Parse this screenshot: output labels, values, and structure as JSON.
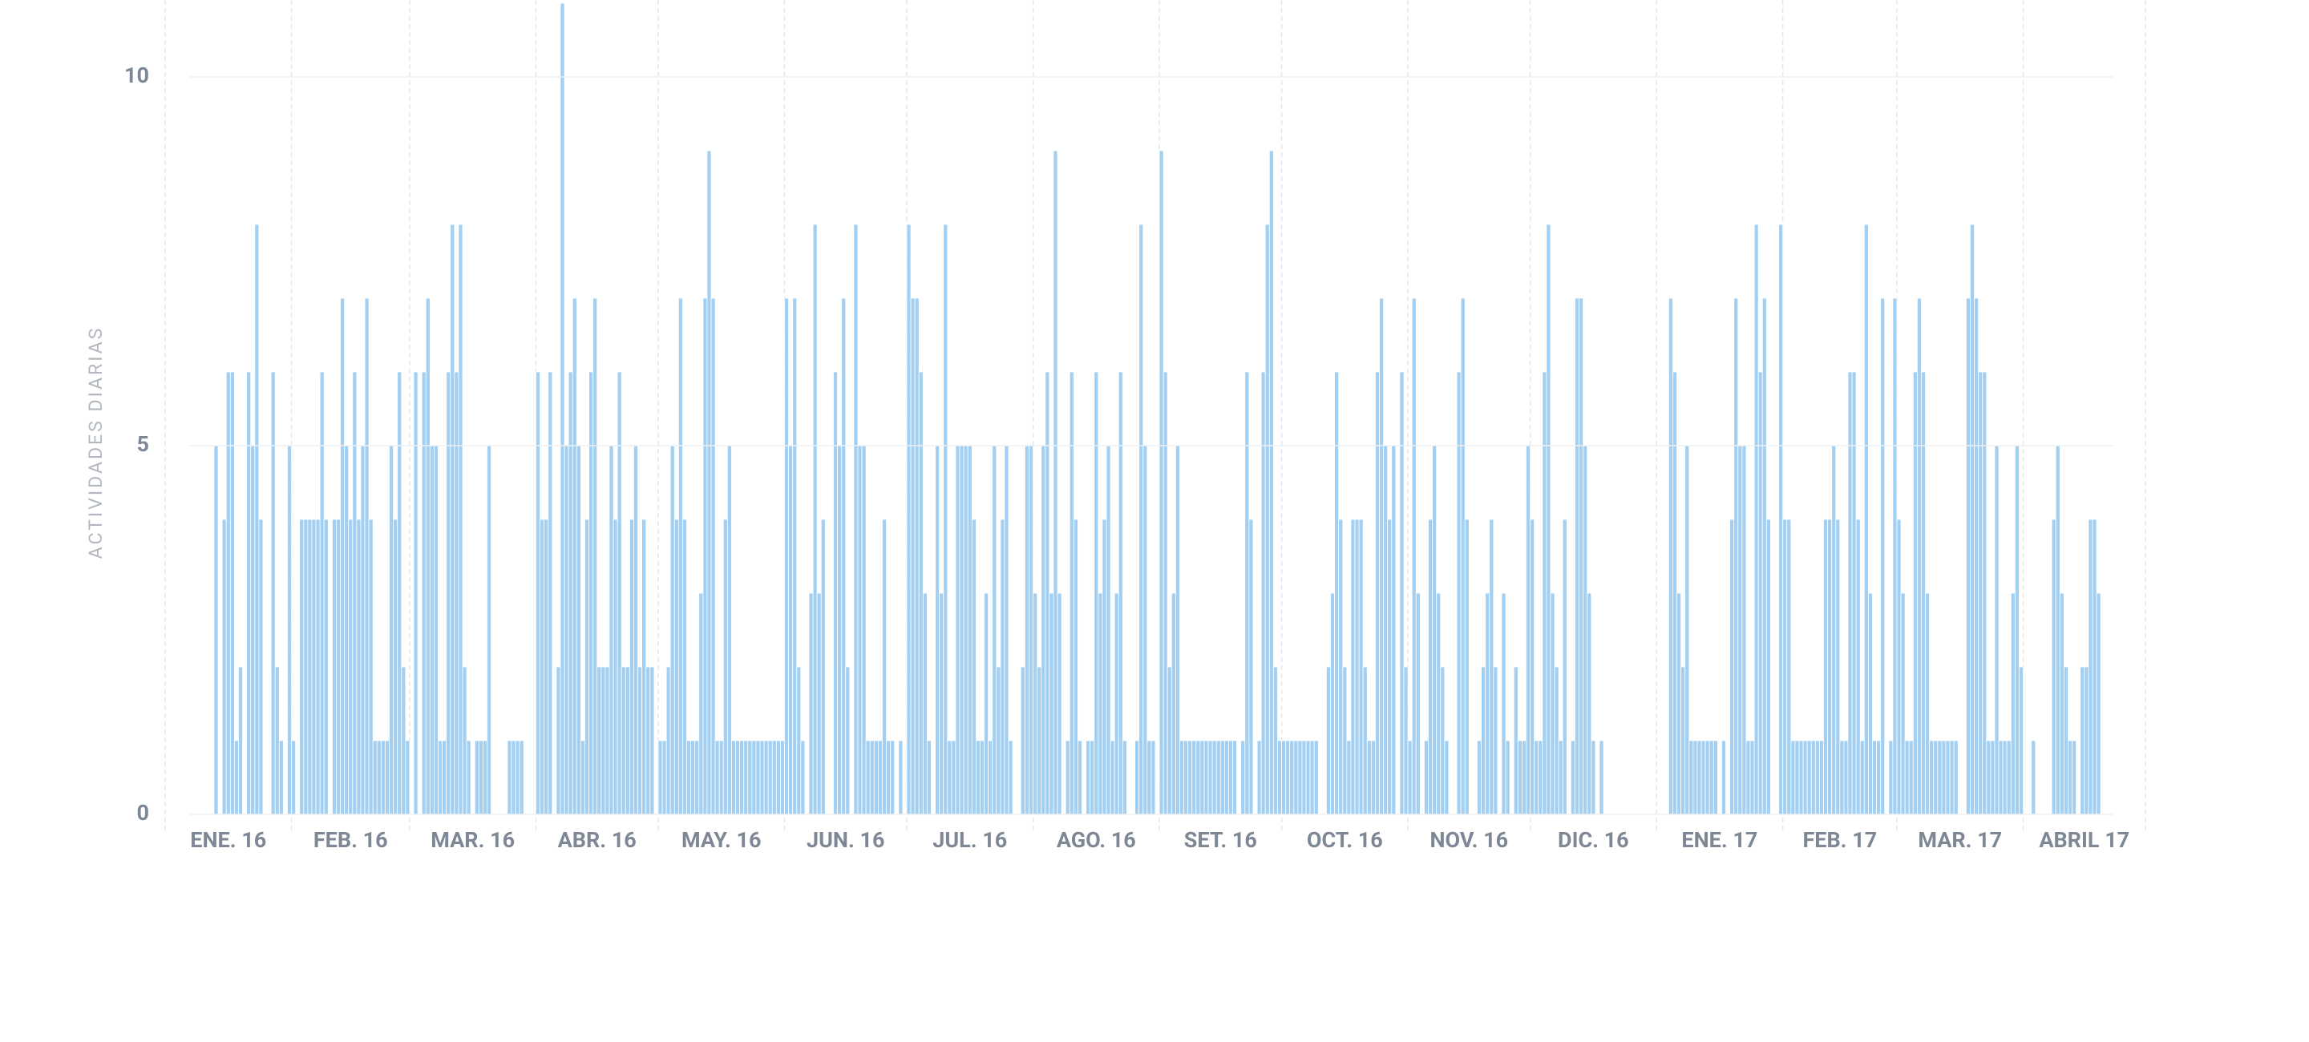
{
  "chart_data": {
    "type": "bar",
    "y_axis_label": "ACTIVIDADES DIARIAS",
    "categories": [
      "ENE. 16",
      "FEB. 16",
      "MAR. 16",
      "ABR. 16",
      "MAY. 16",
      "JUN. 16",
      "JUL. 16",
      "AGO. 16",
      "SET. 16",
      "OCT. 16",
      "NOV. 16",
      "DIC. 16",
      "ENE. 17",
      "FEB. 17",
      "MAR. 17",
      "ABRIL 17"
    ],
    "values": [
      [
        0,
        0,
        0,
        0,
        0,
        0,
        0,
        0,
        0,
        0,
        0,
        0,
        5,
        0,
        4,
        6,
        6,
        1,
        2,
        0,
        6,
        5,
        8,
        4,
        0,
        0,
        6,
        2,
        1,
        0,
        5
      ],
      [
        1,
        0,
        4,
        4,
        4,
        4,
        4,
        6,
        4,
        0,
        4,
        4,
        7,
        5,
        4,
        6,
        4,
        5,
        7,
        4,
        1,
        1,
        1,
        1,
        5,
        4,
        6,
        2,
        1
      ],
      [
        0,
        6,
        0,
        6,
        7,
        5,
        5,
        1,
        1,
        6,
        8,
        6,
        8,
        2,
        1,
        0,
        1,
        1,
        1,
        5,
        0,
        0,
        0,
        0,
        1,
        1,
        1,
        1,
        0,
        0,
        0
      ],
      [
        6,
        4,
        4,
        6,
        0,
        2,
        11,
        5,
        6,
        7,
        5,
        1,
        4,
        6,
        7,
        2,
        2,
        2,
        5,
        4,
        6,
        2,
        2,
        4,
        5,
        2,
        4,
        2,
        2,
        0
      ],
      [
        1,
        1,
        2,
        5,
        4,
        7,
        4,
        1,
        1,
        1,
        3,
        7,
        9,
        7,
        1,
        1,
        4,
        5,
        1,
        1,
        1,
        1,
        1,
        1,
        1,
        1,
        1,
        1,
        1,
        1,
        1
      ],
      [
        7,
        5,
        7,
        2,
        1,
        0,
        3,
        8,
        3,
        4,
        0,
        0,
        6,
        5,
        7,
        2,
        0,
        8,
        5,
        5,
        1,
        1,
        1,
        1,
        4,
        1,
        1,
        0,
        1,
        0
      ],
      [
        8,
        7,
        7,
        6,
        3,
        1,
        0,
        5,
        3,
        8,
        1,
        1,
        5,
        5,
        5,
        5,
        4,
        1,
        1,
        3,
        1,
        5,
        2,
        4,
        5,
        1,
        0,
        0,
        2,
        5,
        5
      ],
      [
        3,
        2,
        5,
        6,
        3,
        9,
        3,
        0,
        1,
        6,
        4,
        1,
        0,
        1,
        1,
        6,
        3,
        4,
        5,
        1,
        3,
        6,
        1,
        0,
        0,
        1,
        8,
        5,
        1,
        1,
        0
      ],
      [
        9,
        6,
        2,
        3,
        5,
        1,
        1,
        1,
        1,
        1,
        1,
        1,
        1,
        1,
        1,
        1,
        1,
        1,
        1,
        0,
        1,
        6,
        4,
        0,
        1,
        6,
        8,
        9,
        2,
        1
      ],
      [
        1,
        1,
        1,
        1,
        1,
        1,
        1,
        1,
        1,
        0,
        0,
        2,
        3,
        6,
        4,
        2,
        1,
        4,
        4,
        4,
        2,
        1,
        1,
        6,
        7,
        5,
        4,
        5,
        0,
        6,
        2
      ],
      [
        1,
        7,
        3,
        0,
        1,
        4,
        5,
        3,
        2,
        1,
        0,
        0,
        6,
        7,
        4,
        0,
        0,
        1,
        2,
        3,
        4,
        2,
        0,
        3,
        1,
        0,
        2,
        1,
        1,
        5
      ],
      [
        4,
        1,
        1,
        6,
        8,
        3,
        2,
        1,
        4,
        0,
        1,
        7,
        7,
        5,
        3,
        1,
        0,
        1,
        0,
        0,
        0,
        0,
        0,
        0,
        0,
        0,
        0,
        0,
        0,
        0,
        0
      ],
      [
        0,
        0,
        0,
        7,
        6,
        3,
        2,
        5,
        1,
        1,
        1,
        1,
        1,
        1,
        1,
        0,
        1,
        0,
        4,
        7,
        5,
        5,
        1,
        1,
        8,
        6,
        7,
        4,
        0,
        0,
        8
      ],
      [
        4,
        4,
        1,
        1,
        1,
        1,
        1,
        1,
        1,
        1,
        4,
        4,
        5,
        4,
        1,
        1,
        6,
        6,
        4,
        1,
        8,
        3,
        1,
        1,
        7,
        0,
        1,
        7
      ],
      [
        4,
        3,
        1,
        1,
        6,
        7,
        6,
        3,
        1,
        1,
        1,
        1,
        1,
        1,
        1,
        0,
        0,
        7,
        8,
        7,
        6,
        6,
        1,
        1,
        5,
        1,
        1,
        1,
        3,
        5,
        2
      ],
      [
        0,
        0,
        1,
        0,
        0,
        0,
        0,
        4,
        5,
        3,
        2,
        1,
        1,
        0,
        2,
        2,
        4,
        4,
        3,
        0,
        0,
        0,
        0,
        0,
        0,
        0,
        0,
        0,
        0,
        0
      ]
    ],
    "color": "#a3d0f2",
    "ylim": [
      0,
      11
    ],
    "yticks": [
      0,
      5,
      10
    ],
    "grid": true
  }
}
